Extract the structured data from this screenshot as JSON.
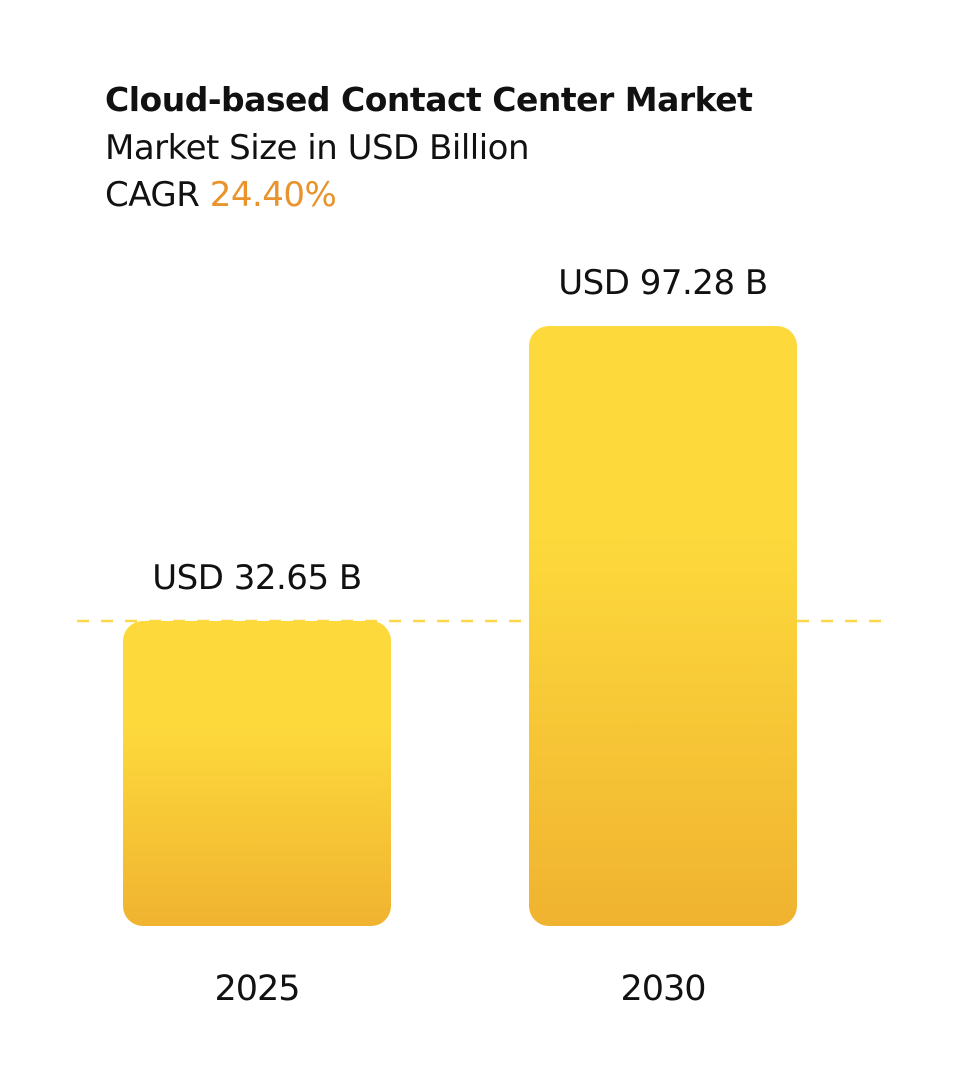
{
  "chart_data": {
    "type": "bar",
    "title": "Cloud-based Contact Center Market",
    "subtitle": "Market Size in USD Billion",
    "cagr_label": "CAGR",
    "cagr_value": "24.40%",
    "categories": [
      "2025",
      "2030"
    ],
    "values": [
      32.65,
      97.28
    ],
    "data_labels": [
      "USD 32.65 B",
      "USD 97.28 B"
    ],
    "reference_line": {
      "value": 32.65,
      "style": "dashed"
    },
    "grid": false,
    "colors": {
      "bar_top": "#fdd93c",
      "bar_bottom": "#f0b330",
      "reference_line": "#fad84a",
      "cagr": "#e8932c"
    }
  }
}
